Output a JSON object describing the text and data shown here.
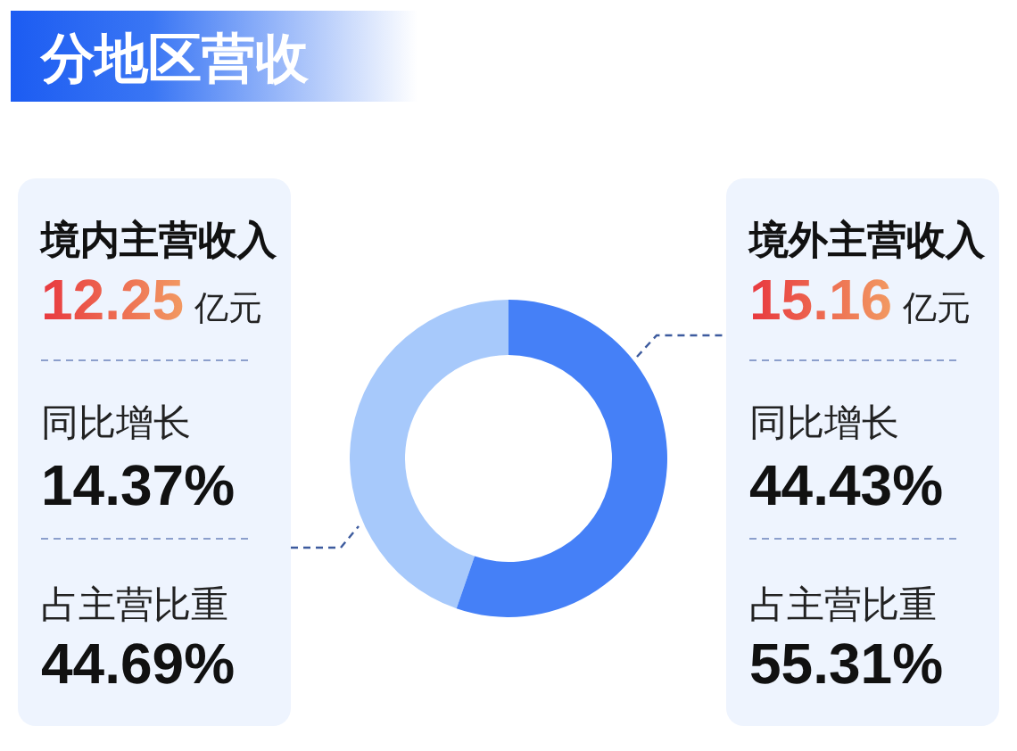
{
  "chart_data": {
    "type": "donut",
    "title": "分地区营收",
    "categories": [
      "境内主营收入",
      "境外主营收入"
    ],
    "values": [
      12.25,
      15.16
    ],
    "colors": [
      "#a7c9fb",
      "#4580f7"
    ],
    "data_labels": true,
    "annotations": [
      "亿元",
      "同比增长",
      "14.37%",
      "占主营比重",
      "44.69%",
      "亿元",
      "同比增长",
      "44.43%",
      "占主营比重",
      "55.31%"
    ]
  }
}
